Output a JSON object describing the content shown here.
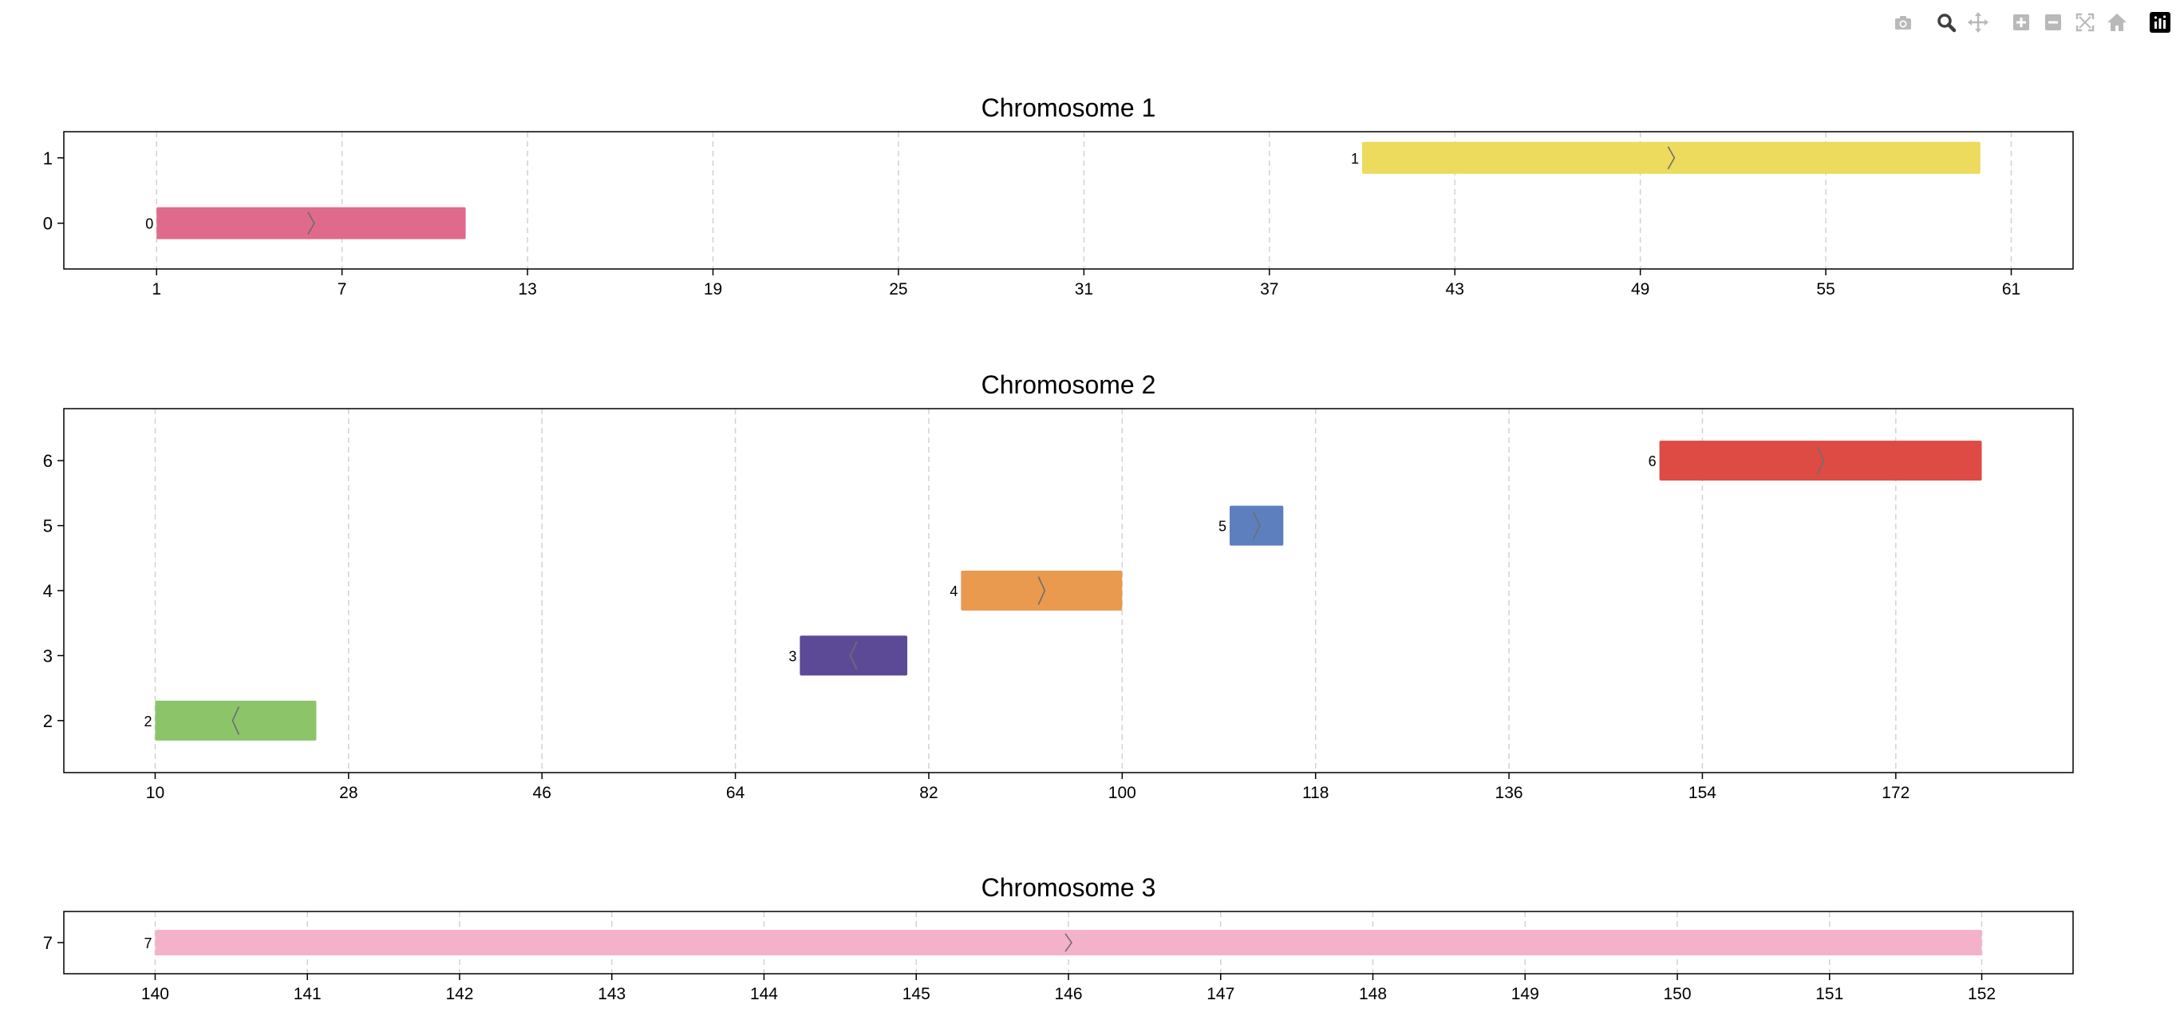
{
  "modebar": {
    "buttons": [
      {
        "group": 0,
        "icon": "camera-icon",
        "name": "download-plot-button",
        "color": "#b9b9b9"
      },
      {
        "group": 1,
        "icon": "zoom-icon",
        "name": "zoom-button",
        "color": "#3f3f3f"
      },
      {
        "group": 1,
        "icon": "pan-icon",
        "name": "pan-button",
        "color": "#b9b9b9"
      },
      {
        "group": 2,
        "icon": "zoom-in-icon",
        "name": "zoom-in-button",
        "color": "#b9b9b9"
      },
      {
        "group": 2,
        "icon": "zoom-out-icon",
        "name": "zoom-out-button",
        "color": "#b9b9b9"
      },
      {
        "group": 2,
        "icon": "autoscale-icon",
        "name": "autoscale-button",
        "color": "#b9b9b9"
      },
      {
        "group": 2,
        "icon": "home-icon",
        "name": "reset-axes-button",
        "color": "#b9b9b9"
      },
      {
        "group": 3,
        "icon": "plotly-logo-icon",
        "name": "plotly-logo-button",
        "color": "#000000"
      }
    ]
  },
  "chart_data": [
    {
      "type": "bar",
      "title": "Chromosome 1",
      "xlabel": "",
      "ylabel": "",
      "xlim": [
        -2,
        63
      ],
      "xticks": [
        1,
        7,
        13,
        19,
        25,
        31,
        37,
        43,
        49,
        55,
        61
      ],
      "yticks": [
        0,
        1
      ],
      "ylim": [
        -0.7,
        1.4
      ],
      "grid": true,
      "features": [
        {
          "label": "0",
          "row": 0,
          "start": 1,
          "end": 11,
          "strand": "+",
          "color": "#e06a8c"
        },
        {
          "label": "1",
          "row": 1,
          "start": 40,
          "end": 60,
          "strand": "+",
          "color": "#ecdb5c"
        }
      ]
    },
    {
      "type": "bar",
      "title": "Chromosome 2",
      "xlabel": "",
      "ylabel": "",
      "xlim": [
        1.5,
        188.5
      ],
      "xticks": [
        10,
        28,
        46,
        64,
        82,
        100,
        118,
        136,
        154,
        172
      ],
      "yticks": [
        2,
        3,
        4,
        5,
        6
      ],
      "ylim": [
        1.2,
        6.8
      ],
      "grid": true,
      "features": [
        {
          "label": "2",
          "row": 2,
          "start": 10,
          "end": 25,
          "strand": "-",
          "color": "#8cc46a"
        },
        {
          "label": "3",
          "row": 3,
          "start": 70,
          "end": 80,
          "strand": "-",
          "color": "#5c4a97"
        },
        {
          "label": "4",
          "row": 4,
          "start": 85,
          "end": 100,
          "strand": "+",
          "color": "#e99a4f"
        },
        {
          "label": "5",
          "row": 5,
          "start": 110,
          "end": 115,
          "strand": "+",
          "color": "#5e7fbe"
        },
        {
          "label": "6",
          "row": 6,
          "start": 150,
          "end": 180,
          "strand": "+",
          "color": "#dd4b44"
        }
      ]
    },
    {
      "type": "bar",
      "title": "Chromosome 3",
      "xlabel": "",
      "ylabel": "",
      "xlim": [
        139.4,
        152.6
      ],
      "xticks": [
        140,
        141,
        142,
        143,
        144,
        145,
        146,
        147,
        148,
        149,
        150,
        151,
        152
      ],
      "yticks": [
        7
      ],
      "ylim": [
        6.5,
        7.5
      ],
      "grid": true,
      "features": [
        {
          "label": "7",
          "row": 7,
          "start": 140,
          "end": 152,
          "strand": "+",
          "color": "#f3b2c9"
        }
      ]
    }
  ]
}
